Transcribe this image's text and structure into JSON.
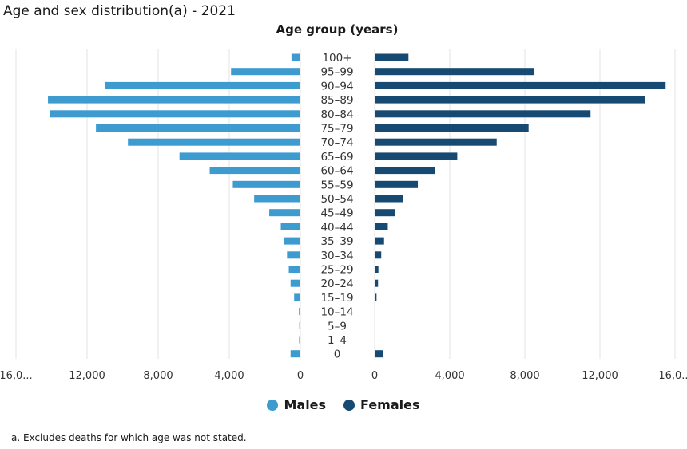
{
  "title": "Age and sex distribution(a) - 2021",
  "subtitle": "Age group (years)",
  "footnote": "a. Excludes deaths for which age was not stated.",
  "colors": {
    "males": "#3d9bd0",
    "females": "#174a72",
    "grid": "#e3e3e3",
    "axis_text": "#333333"
  },
  "chart_data": {
    "type": "bar",
    "orientation": "horizontal-population-pyramid",
    "categories": [
      "100+",
      "95–99",
      "90–94",
      "85–89",
      "80–84",
      "75–79",
      "70–74",
      "65–69",
      "60–64",
      "55–59",
      "50–54",
      "45–49",
      "40–44",
      "35–39",
      "30–34",
      "25–29",
      "20–24",
      "15–19",
      "10–14",
      "5–9",
      "1–4",
      "0"
    ],
    "series": [
      {
        "name": "Males",
        "values": [
          500,
          3900,
          11000,
          14200,
          14100,
          11500,
          9700,
          6800,
          5100,
          3800,
          2600,
          1750,
          1100,
          900,
          750,
          650,
          550,
          350,
          80,
          60,
          70,
          550
        ]
      },
      {
        "name": "Females",
        "values": [
          1800,
          8500,
          15500,
          14400,
          11500,
          8200,
          6500,
          4400,
          3200,
          2300,
          1500,
          1100,
          700,
          500,
          350,
          200,
          180,
          100,
          20,
          15,
          20,
          450
        ]
      }
    ],
    "xlim": [
      0,
      16000
    ],
    "male_ticks": [
      "16,0...",
      "12,000",
      "8,000",
      "4,000",
      "0"
    ],
    "female_ticks": [
      "0",
      "4,000",
      "8,000",
      "12,000",
      "16,0..."
    ],
    "tick_values": [
      16000,
      12000,
      8000,
      4000,
      0
    ],
    "grid": true,
    "legend_position": "bottom"
  },
  "legend": [
    {
      "label": "Males"
    },
    {
      "label": "Females"
    }
  ]
}
